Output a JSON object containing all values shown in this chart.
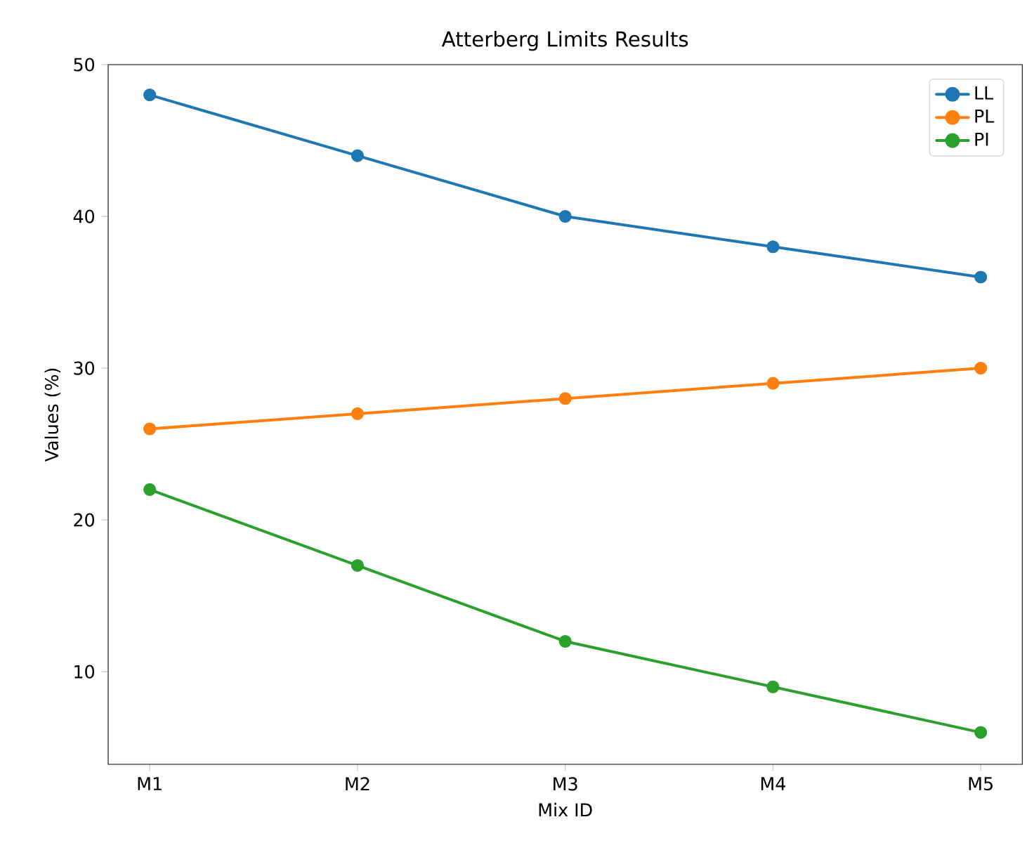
{
  "chart_data": {
    "type": "line",
    "title": "Atterberg Limits Results",
    "xlabel": "Mix ID",
    "ylabel": "Values (%)",
    "categories": [
      "M1",
      "M2",
      "M3",
      "M4",
      "M5"
    ],
    "series": [
      {
        "name": "LL",
        "color": "#1f77b4",
        "values": [
          48,
          44,
          40,
          38,
          36
        ]
      },
      {
        "name": "PL",
        "color": "#ff7f0e",
        "values": [
          26,
          27,
          28,
          29,
          30
        ]
      },
      {
        "name": "PI",
        "color": "#2ca02c",
        "values": [
          22,
          17,
          12,
          9,
          6
        ]
      }
    ],
    "ylim": [
      3.9,
      50
    ],
    "yticks": [
      10,
      20,
      30,
      40,
      50
    ],
    "legend": "top right",
    "marker": "circle",
    "line_style": "solid",
    "grid": false
  }
}
